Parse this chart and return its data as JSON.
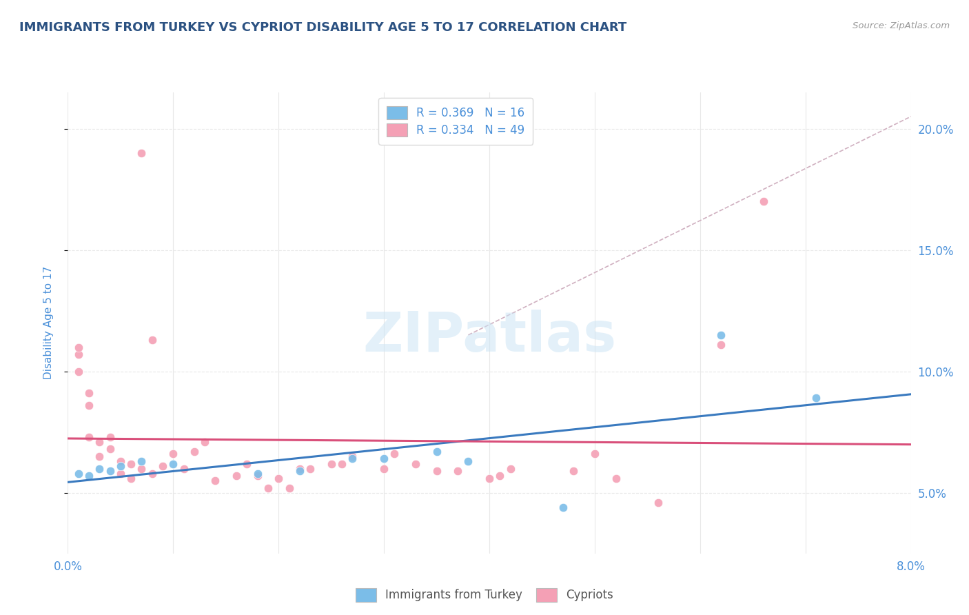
{
  "title": "IMMIGRANTS FROM TURKEY VS CYPRIOT DISABILITY AGE 5 TO 17 CORRELATION CHART",
  "source_text": "Source: ZipAtlas.com",
  "ylabel": "Disability Age 5 to 17",
  "legend_entries": [
    {
      "label": "R = 0.369   N = 16",
      "color": "#a8d0e8"
    },
    {
      "label": "R = 0.334   N = 49",
      "color": "#f4a0b5"
    }
  ],
  "legend_labels_bottom": [
    "Immigrants from Turkey",
    "Cypriots"
  ],
  "xmin": 0.0,
  "xmax": 0.08,
  "ymin": 0.025,
  "ymax": 0.215,
  "yticks": [
    0.05,
    0.1,
    0.15,
    0.2
  ],
  "ytick_labels": [
    "5.0%",
    "10.0%",
    "15.0%",
    "20.0%"
  ],
  "xticks": [
    0.0,
    0.01,
    0.02,
    0.03,
    0.04,
    0.05,
    0.06,
    0.07,
    0.08
  ],
  "xtick_labels": [
    "0.0%",
    "",
    "",
    "",
    "",
    "",
    "",
    "",
    "8.0%"
  ],
  "blue_scatter_x": [
    0.001,
    0.002,
    0.003,
    0.004,
    0.005,
    0.007,
    0.01,
    0.018,
    0.022,
    0.027,
    0.03,
    0.035,
    0.038,
    0.047,
    0.062,
    0.071
  ],
  "blue_scatter_y": [
    0.058,
    0.057,
    0.06,
    0.059,
    0.061,
    0.063,
    0.062,
    0.058,
    0.059,
    0.064,
    0.064,
    0.067,
    0.063,
    0.044,
    0.115,
    0.089
  ],
  "pink_scatter_x": [
    0.001,
    0.001,
    0.001,
    0.002,
    0.002,
    0.002,
    0.003,
    0.003,
    0.004,
    0.004,
    0.005,
    0.005,
    0.006,
    0.006,
    0.007,
    0.008,
    0.009,
    0.01,
    0.011,
    0.012,
    0.013,
    0.014,
    0.016,
    0.017,
    0.018,
    0.019,
    0.02,
    0.021,
    0.022,
    0.023,
    0.025,
    0.026,
    0.027,
    0.03,
    0.031,
    0.033,
    0.035,
    0.037,
    0.04,
    0.041,
    0.042,
    0.048,
    0.05,
    0.052,
    0.056,
    0.062,
    0.066,
    0.007,
    0.008
  ],
  "pink_scatter_y": [
    0.1,
    0.107,
    0.11,
    0.086,
    0.091,
    0.073,
    0.065,
    0.071,
    0.068,
    0.073,
    0.058,
    0.063,
    0.056,
    0.062,
    0.06,
    0.058,
    0.061,
    0.066,
    0.06,
    0.067,
    0.071,
    0.055,
    0.057,
    0.062,
    0.057,
    0.052,
    0.056,
    0.052,
    0.06,
    0.06,
    0.062,
    0.062,
    0.065,
    0.06,
    0.066,
    0.062,
    0.059,
    0.059,
    0.056,
    0.057,
    0.06,
    0.059,
    0.066,
    0.056,
    0.046,
    0.111,
    0.17,
    0.19,
    0.113
  ],
  "blue_color": "#7bbde8",
  "pink_color": "#f4a0b5",
  "blue_line_color": "#3a7abf",
  "pink_line_color": "#d94f7a",
  "diag_line_color": "#d0b0c0",
  "watermark_text": "ZIPatlas",
  "background_color": "#ffffff",
  "grid_color": "#e8e8e8",
  "title_color": "#2c5282",
  "axis_label_color": "#4a90d9",
  "tick_color": "#4a90d9"
}
